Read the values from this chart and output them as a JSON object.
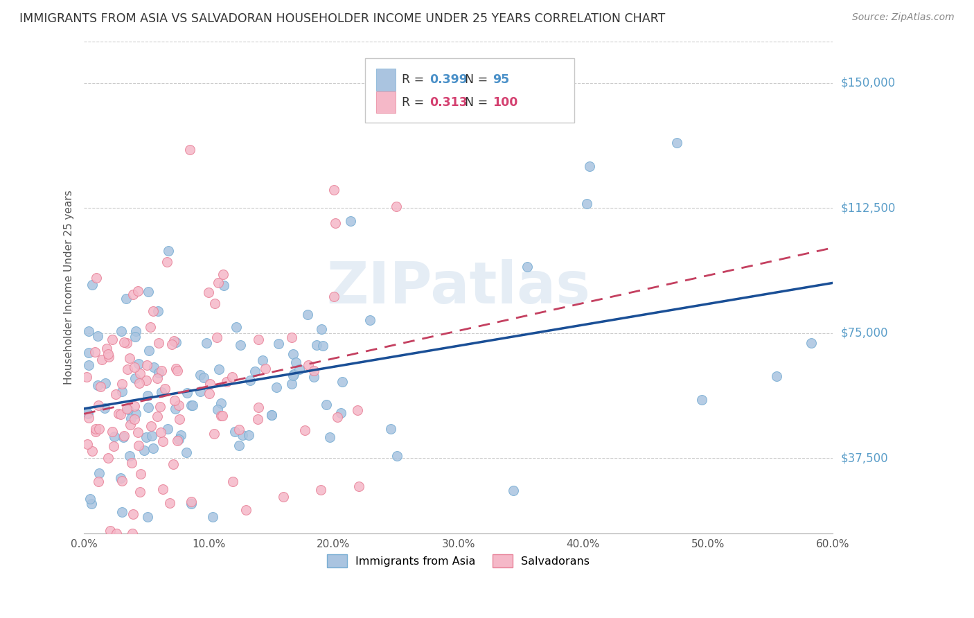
{
  "title": "IMMIGRANTS FROM ASIA VS SALVADORAN HOUSEHOLDER INCOME UNDER 25 YEARS CORRELATION CHART",
  "source": "Source: ZipAtlas.com",
  "ylabel_label": "Householder Income Under 25 years",
  "xmin": 0.0,
  "xmax": 0.6,
  "ymin": 15000,
  "ymax": 162500,
  "ytick_vals": [
    37500,
    75000,
    112500,
    150000
  ],
  "ytick_labels": [
    "$37,500",
    "$75,000",
    "$112,500",
    "$150,000"
  ],
  "xtick_vals": [
    0.0,
    0.1,
    0.2,
    0.3,
    0.4,
    0.5,
    0.6
  ],
  "xtick_labels": [
    "0.0%",
    "10.0%",
    "20.0%",
    "30.0%",
    "40.0%",
    "50.0%",
    "60.0%"
  ],
  "asia_color": "#aac4e0",
  "asia_edge_color": "#7bafd4",
  "salv_color": "#f5b8c8",
  "salv_edge_color": "#e8849a",
  "asia_line_color": "#1a4f96",
  "salv_line_color": "#c44060",
  "salv_line_dash": "--",
  "R_asia": 0.399,
  "N_asia": 95,
  "R_salv": 0.313,
  "N_salv": 100,
  "watermark": "ZIPatlas",
  "watermark_color": "#c0d4e8",
  "grid_color": "#cccccc",
  "title_color": "#333333",
  "source_color": "#888888",
  "ylabel_color": "#555555",
  "right_label_color": "#5b9ec9",
  "legend_R_asia_color": "#4a90c8",
  "legend_R_salv_color": "#d44070",
  "legend_N_asia_color": "#4a90c8",
  "legend_N_salv_color": "#d44070"
}
